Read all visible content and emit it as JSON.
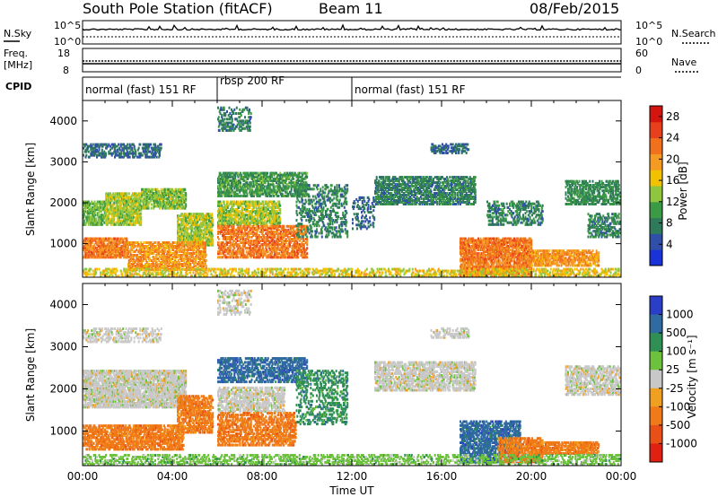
{
  "header": {
    "station": "South Pole Station (fitACF)",
    "beam": "Beam 11",
    "date": "08/Feb/2015"
  },
  "strips": {
    "nsky_label": "N.Sky",
    "nsky_ticks": [
      "10^5",
      "10^0"
    ],
    "nsearch_label": "N.Search",
    "nsearch_ticks": [
      "10^5",
      "10^0"
    ],
    "freq_label_1": "Freq.",
    "freq_label_2": "[MHz]",
    "freq_ticks": [
      "18",
      "8"
    ],
    "nave_label": "Nave",
    "nave_ticks": [
      "60",
      "0"
    ],
    "cpid_label": "CPID"
  },
  "cpid_segments": [
    {
      "label": "normal (fast) 151 RF",
      "start_h": 0,
      "end_h": 6
    },
    {
      "label": "rbsp 200 RF",
      "start_h": 6,
      "end_h": 12
    },
    {
      "label": "normal (fast) 151 RF",
      "start_h": 12,
      "end_h": 24
    }
  ],
  "chart_data": [
    {
      "type": "heatmap",
      "name": "power",
      "ylabel": "Slant Range [km]",
      "xlabel": "",
      "x_range_hours": [
        0,
        24
      ],
      "ylim": [
        180,
        4500
      ],
      "y_ticks": [
        1000,
        2000,
        3000,
        4000
      ],
      "x_ticks": [
        "00:00",
        "04:00",
        "08:00",
        "12:00",
        "16:00",
        "20:00",
        "00:00"
      ],
      "colorbar": {
        "label": "Power [dB]",
        "ticks": [
          4,
          8,
          12,
          16,
          20,
          24,
          28
        ],
        "range": [
          0,
          30
        ],
        "colors": [
          "#1a33d9",
          "#2f4fa8",
          "#2f7a5a",
          "#3b9a45",
          "#8ec63f",
          "#f2c100",
          "#f59a23",
          "#f0701c",
          "#e8401c",
          "#d4140f"
        ]
      },
      "bands": [
        {
          "t0": 0.0,
          "t1": 3.5,
          "r0": 3150,
          "r1": 3500,
          "level": 6,
          "density": 0.35
        },
        {
          "t0": 0.0,
          "t1": 1.0,
          "r0": 1500,
          "r1": 2100,
          "level": 12,
          "density": 0.55
        },
        {
          "t0": 1.0,
          "t1": 2.6,
          "r0": 1500,
          "r1": 2300,
          "level": 14,
          "density": 0.6
        },
        {
          "t0": 2.6,
          "t1": 4.6,
          "r0": 1900,
          "r1": 2400,
          "level": 13,
          "density": 0.6
        },
        {
          "t0": 4.2,
          "t1": 5.8,
          "r0": 1000,
          "r1": 1800,
          "level": 14,
          "density": 0.55
        },
        {
          "t0": 0.0,
          "t1": 2.0,
          "r0": 700,
          "r1": 1200,
          "level": 22,
          "density": 0.6
        },
        {
          "t0": 2.0,
          "t1": 5.5,
          "r0": 400,
          "r1": 1100,
          "level": 20,
          "density": 0.5
        },
        {
          "t0": 6.0,
          "t1": 10.0,
          "r0": 2200,
          "r1": 2800,
          "level": 10,
          "density": 0.5
        },
        {
          "t0": 6.0,
          "t1": 8.8,
          "r0": 1500,
          "r1": 2100,
          "level": 14,
          "density": 0.55
        },
        {
          "t0": 6.0,
          "t1": 10.0,
          "r0": 700,
          "r1": 1500,
          "level": 22,
          "density": 0.45
        },
        {
          "t0": 6.0,
          "t1": 7.5,
          "r0": 3800,
          "r1": 4400,
          "level": 8,
          "density": 0.25
        },
        {
          "t0": 9.5,
          "t1": 11.8,
          "r0": 1200,
          "r1": 2500,
          "level": 8,
          "density": 0.25
        },
        {
          "t0": 12.0,
          "t1": 13.0,
          "r0": 1400,
          "r1": 2200,
          "level": 6,
          "density": 0.2
        },
        {
          "t0": 13.0,
          "t1": 17.5,
          "r0": 2000,
          "r1": 2700,
          "level": 8,
          "density": 0.5
        },
        {
          "t0": 15.5,
          "t1": 17.2,
          "r0": 3250,
          "r1": 3500,
          "level": 6,
          "density": 0.35
        },
        {
          "t0": 16.8,
          "t1": 20.0,
          "r0": 200,
          "r1": 1200,
          "level": 22,
          "density": 0.6
        },
        {
          "t0": 18.0,
          "t1": 20.5,
          "r0": 1500,
          "r1": 2100,
          "level": 8,
          "density": 0.35
        },
        {
          "t0": 20.0,
          "t1": 23.0,
          "r0": 500,
          "r1": 900,
          "level": 20,
          "density": 0.55
        },
        {
          "t0": 21.5,
          "t1": 24.0,
          "r0": 2000,
          "r1": 2600,
          "level": 9,
          "density": 0.45
        },
        {
          "t0": 22.5,
          "t1": 24.0,
          "r0": 1200,
          "r1": 1800,
          "level": 8,
          "density": 0.35
        },
        {
          "t0": 0.0,
          "t1": 24.0,
          "r0": 200,
          "r1": 450,
          "level": 16,
          "density": 0.3
        }
      ]
    },
    {
      "type": "heatmap",
      "name": "velocity",
      "ylabel": "Slant Range [km]",
      "xlabel": "Time UT",
      "x_range_hours": [
        0,
        24
      ],
      "ylim": [
        180,
        4500
      ],
      "y_ticks": [
        1000,
        2000,
        3000,
        4000
      ],
      "x_ticks": [
        "00:00",
        "04:00",
        "08:00",
        "12:00",
        "16:00",
        "20:00",
        "00:00"
      ],
      "colorbar": {
        "label": "Velocity [m s⁻¹]",
        "ticks": [
          "1000",
          "500",
          "100",
          "25",
          "-25",
          "-100",
          "-500",
          "-1000"
        ],
        "colors": [
          "#2a3ec8",
          "#2f6aa0",
          "#2f8f55",
          "#6cc23c",
          "#c8c8c8",
          "#f0a020",
          "#f07a18",
          "#e85018",
          "#e02010"
        ]
      },
      "bands": [
        {
          "t0": 0.0,
          "t1": 3.5,
          "r0": 3150,
          "r1": 3500,
          "level": 4,
          "density": 0.3
        },
        {
          "t0": 0.0,
          "t1": 4.6,
          "r0": 1600,
          "r1": 2500,
          "level": 4,
          "density": 0.65
        },
        {
          "t0": 0.0,
          "t1": 4.5,
          "r0": 600,
          "r1": 1200,
          "level": 6,
          "density": 0.55
        },
        {
          "t0": 4.2,
          "t1": 5.8,
          "r0": 1000,
          "r1": 1900,
          "level": 6,
          "density": 0.5
        },
        {
          "t0": 6.0,
          "t1": 10.0,
          "r0": 2200,
          "r1": 2800,
          "level": 1,
          "density": 0.45
        },
        {
          "t0": 6.0,
          "t1": 9.0,
          "r0": 1500,
          "r1": 2100,
          "level": 4,
          "density": 0.5
        },
        {
          "t0": 6.0,
          "t1": 9.5,
          "r0": 700,
          "r1": 1500,
          "level": 6,
          "density": 0.45
        },
        {
          "t0": 6.0,
          "t1": 7.5,
          "r0": 3800,
          "r1": 4400,
          "level": 4,
          "density": 0.25
        },
        {
          "t0": 9.5,
          "t1": 11.8,
          "r0": 1200,
          "r1": 2500,
          "level": 2,
          "density": 0.25
        },
        {
          "t0": 13.0,
          "t1": 17.5,
          "r0": 2000,
          "r1": 2700,
          "level": 4,
          "density": 0.5
        },
        {
          "t0": 15.5,
          "t1": 17.2,
          "r0": 3250,
          "r1": 3500,
          "level": 4,
          "density": 0.3
        },
        {
          "t0": 16.8,
          "t1": 19.5,
          "r0": 300,
          "r1": 1300,
          "level": 1,
          "density": 0.55
        },
        {
          "t0": 18.5,
          "t1": 20.5,
          "r0": 300,
          "r1": 900,
          "level": 6,
          "density": 0.55
        },
        {
          "t0": 20.0,
          "t1": 23.0,
          "r0": 500,
          "r1": 800,
          "level": 6,
          "density": 0.6
        },
        {
          "t0": 21.5,
          "t1": 24.0,
          "r0": 1900,
          "r1": 2600,
          "level": 4,
          "density": 0.45
        },
        {
          "t0": 0.0,
          "t1": 24.0,
          "r0": 200,
          "r1": 500,
          "level": 3,
          "density": 0.3
        }
      ]
    }
  ]
}
